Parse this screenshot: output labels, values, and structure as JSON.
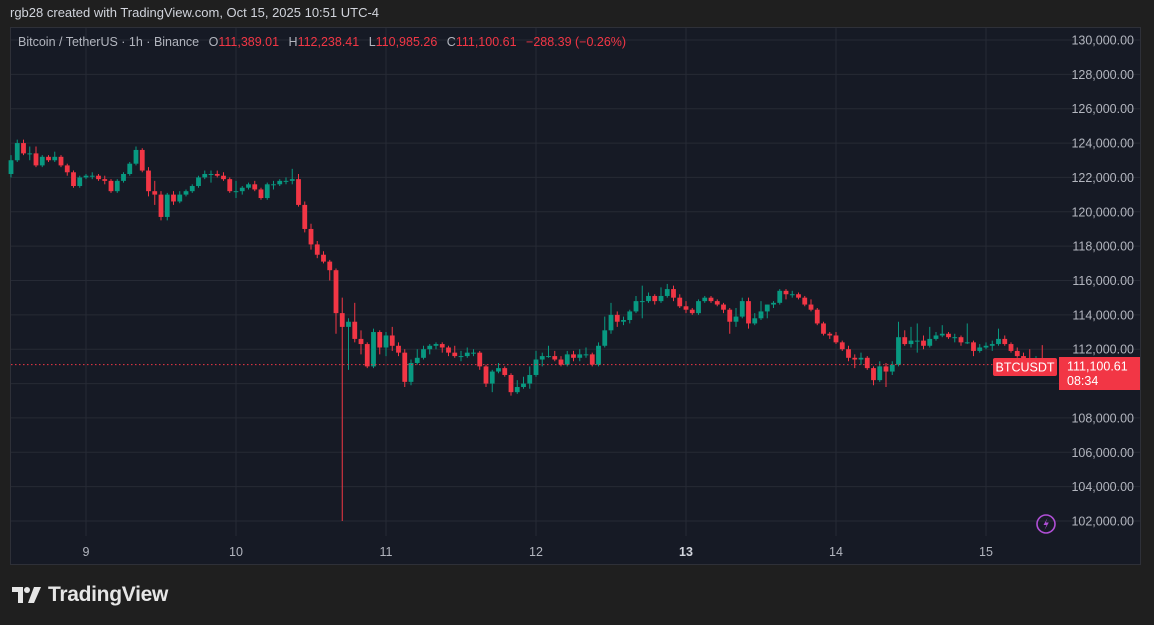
{
  "credit": "rgb28 created with TradingView.com, Oct 15, 2025 10:51 UTC-4",
  "legend": {
    "symbol": "Bitcoin / TetherUS · 1h · Binance",
    "o_label": "O",
    "o": "111,389.01",
    "h_label": "H",
    "h": "112,238.41",
    "l_label": "L",
    "l": "110,985.26",
    "c_label": "C",
    "c": "111,100.61",
    "change": "−288.39 (−0.26%)"
  },
  "price_tag": {
    "symbol": "BTCUSDT",
    "price": "111,100.61",
    "countdown": "08:34"
  },
  "brand": {
    "name": "TradingView"
  },
  "colors": {
    "up": "#089981",
    "down": "#f23645",
    "background": "#161a25",
    "grid": "#262a35",
    "alert_icon": "#b04fd6"
  },
  "icons": {
    "alert": "lightning-circle-icon",
    "logo": "tradingview-logo-icon"
  },
  "chart_data": {
    "type": "candlestick",
    "interval": "1h",
    "ylim": [
      101000,
      131000
    ],
    "y_ticks": [
      "130,000.00",
      "128,000.00",
      "126,000.00",
      "124,000.00",
      "122,000.00",
      "120,000.00",
      "118,000.00",
      "116,000.00",
      "114,000.00",
      "112,000.00",
      "108,000.00",
      "106,000.00",
      "104,000.00",
      "102,000.00"
    ],
    "y_tick_values": [
      130000,
      128000,
      126000,
      124000,
      122000,
      120000,
      118000,
      116000,
      114000,
      112000,
      108000,
      106000,
      104000,
      102000
    ],
    "x_ticks": [
      "9",
      "10",
      "11",
      "12",
      "13",
      "14",
      "15"
    ],
    "grid": true,
    "last_price": 111100.61,
    "candles_ohlc": [
      [
        122200,
        123300,
        122000,
        123000
      ],
      [
        123000,
        124200,
        122900,
        124000
      ],
      [
        124000,
        124200,
        123300,
        123400
      ],
      [
        123400,
        123800,
        123000,
        123400
      ],
      [
        123400,
        123800,
        122600,
        122700
      ],
      [
        122700,
        123300,
        122600,
        123200
      ],
      [
        123200,
        123300,
        122900,
        123000
      ],
      [
        123000,
        123500,
        122900,
        123200
      ],
      [
        123200,
        123300,
        122600,
        122700
      ],
      [
        122700,
        122800,
        122100,
        122300
      ],
      [
        122300,
        122400,
        121400,
        121500
      ],
      [
        121500,
        122100,
        121400,
        122000
      ],
      [
        122000,
        122200,
        121900,
        122100
      ],
      [
        122100,
        122300,
        121900,
        122100
      ],
      [
        122100,
        122200,
        121800,
        121900
      ],
      [
        121900,
        122100,
        121600,
        121800
      ],
      [
        121800,
        121900,
        121100,
        121200
      ],
      [
        121200,
        121900,
        121100,
        121800
      ],
      [
        121800,
        122300,
        121700,
        122200
      ],
      [
        122200,
        122900,
        122100,
        122800
      ],
      [
        122800,
        123800,
        122700,
        123600
      ],
      [
        123600,
        123700,
        122300,
        122400
      ],
      [
        122400,
        122600,
        120900,
        121200
      ],
      [
        121200,
        121800,
        120400,
        121000
      ],
      [
        121000,
        121200,
        119500,
        119700
      ],
      [
        119700,
        121100,
        119500,
        121000
      ],
      [
        121000,
        121200,
        120400,
        120600
      ],
      [
        120600,
        121200,
        120500,
        121000
      ],
      [
        121000,
        121300,
        120900,
        121200
      ],
      [
        121200,
        121600,
        121100,
        121500
      ],
      [
        121500,
        122100,
        121400,
        122000
      ],
      [
        122000,
        122400,
        121900,
        122200
      ],
      [
        122200,
        122400,
        121700,
        122200
      ],
      [
        122200,
        122400,
        122000,
        122100
      ],
      [
        122100,
        122300,
        121800,
        121900
      ],
      [
        121900,
        122000,
        121100,
        121200
      ],
      [
        121200,
        121800,
        120800,
        121200
      ],
      [
        121200,
        121500,
        121000,
        121400
      ],
      [
        121400,
        121700,
        121300,
        121600
      ],
      [
        121600,
        121800,
        121200,
        121300
      ],
      [
        121300,
        121400,
        120700,
        120800
      ],
      [
        120800,
        121700,
        120700,
        121600
      ],
      [
        121600,
        121800,
        121300,
        121600
      ],
      [
        121600,
        121900,
        121500,
        121800
      ],
      [
        121800,
        122000,
        121600,
        121800
      ],
      [
        121800,
        122500,
        121600,
        121900
      ],
      [
        121900,
        122200,
        120300,
        120400
      ],
      [
        120400,
        120600,
        118800,
        119000
      ],
      [
        119000,
        119300,
        117800,
        118100
      ],
      [
        118100,
        118300,
        117300,
        117500
      ],
      [
        117500,
        117700,
        117000,
        117100
      ],
      [
        117100,
        117200,
        116000,
        116600
      ],
      [
        116600,
        116700,
        112900,
        114100
      ],
      [
        114100,
        115000,
        102000,
        113300
      ],
      [
        113300,
        113800,
        110800,
        113600
      ],
      [
        113600,
        114700,
        112400,
        112600
      ],
      [
        112600,
        113100,
        111700,
        112300
      ],
      [
        112300,
        112400,
        110900,
        111000
      ],
      [
        111000,
        113200,
        110900,
        113000
      ],
      [
        113000,
        113100,
        111700,
        112100
      ],
      [
        112100,
        113000,
        111600,
        112800
      ],
      [
        112800,
        113300,
        111900,
        112200
      ],
      [
        112200,
        112400,
        111600,
        111800
      ],
      [
        111800,
        112000,
        109800,
        110100
      ],
      [
        110100,
        111400,
        109900,
        111200
      ],
      [
        111200,
        112000,
        111100,
        111500
      ],
      [
        111500,
        112200,
        111400,
        112000
      ],
      [
        112000,
        112300,
        111700,
        112200
      ],
      [
        112200,
        112400,
        112000,
        112300
      ],
      [
        112300,
        112400,
        111800,
        112100
      ],
      [
        112100,
        112200,
        111600,
        111800
      ],
      [
        111800,
        112200,
        111500,
        111600
      ],
      [
        111600,
        111900,
        111300,
        111600
      ],
      [
        111600,
        112100,
        111500,
        111800
      ],
      [
        111800,
        112000,
        111600,
        111800
      ],
      [
        111800,
        111900,
        110800,
        111000
      ],
      [
        111000,
        111100,
        109800,
        110000
      ],
      [
        110000,
        110800,
        109500,
        110700
      ],
      [
        110700,
        111200,
        110600,
        110900
      ],
      [
        110900,
        111000,
        110400,
        110500
      ],
      [
        110500,
        110600,
        109300,
        109500
      ],
      [
        109500,
        110200,
        109400,
        109800
      ],
      [
        109800,
        110400,
        109700,
        110000
      ],
      [
        110000,
        111000,
        109700,
        110500
      ],
      [
        110500,
        111900,
        110400,
        111400
      ],
      [
        111400,
        111800,
        111000,
        111600
      ],
      [
        111600,
        112200,
        111500,
        111600
      ],
      [
        111600,
        111900,
        111300,
        111400
      ],
      [
        111400,
        111600,
        111000,
        111100
      ],
      [
        111100,
        111900,
        111000,
        111700
      ],
      [
        111700,
        111900,
        111300,
        111500
      ],
      [
        111500,
        112000,
        111300,
        111700
      ],
      [
        111700,
        112100,
        111500,
        111700
      ],
      [
        111700,
        111800,
        111000,
        111100
      ],
      [
        111100,
        112400,
        111000,
        112200
      ],
      [
        112200,
        113900,
        112100,
        113100
      ],
      [
        113100,
        114700,
        112900,
        114000
      ],
      [
        114000,
        114200,
        113300,
        113600
      ],
      [
        113600,
        113900,
        113400,
        113700
      ],
      [
        113700,
        114300,
        113500,
        114200
      ],
      [
        114200,
        115100,
        114100,
        114800
      ],
      [
        114800,
        115700,
        113800,
        114800
      ],
      [
        114800,
        115300,
        114700,
        115100
      ],
      [
        115100,
        115200,
        114600,
        114800
      ],
      [
        114800,
        115600,
        114700,
        115100
      ],
      [
        115100,
        115800,
        115000,
        115500
      ],
      [
        115500,
        115700,
        114800,
        115000
      ],
      [
        115000,
        115200,
        114400,
        114500
      ],
      [
        114500,
        114800,
        114100,
        114300
      ],
      [
        114300,
        114400,
        114000,
        114100
      ],
      [
        114100,
        114900,
        114000,
        114800
      ],
      [
        114800,
        115100,
        114700,
        115000
      ],
      [
        115000,
        115100,
        114700,
        114800
      ],
      [
        114800,
        114900,
        114500,
        114600
      ],
      [
        114600,
        114700,
        114100,
        114300
      ],
      [
        114300,
        114400,
        112900,
        113600
      ],
      [
        113600,
        114400,
        113300,
        113900
      ],
      [
        113900,
        115000,
        113800,
        114800
      ],
      [
        114800,
        115000,
        113200,
        113500
      ],
      [
        113500,
        114100,
        113400,
        113800
      ],
      [
        113800,
        114800,
        113700,
        114200
      ],
      [
        114200,
        114600,
        113800,
        114600
      ],
      [
        114600,
        114800,
        114400,
        114700
      ],
      [
        114700,
        115500,
        114600,
        115400
      ],
      [
        115400,
        115500,
        114900,
        115200
      ],
      [
        115200,
        115400,
        115000,
        115200
      ],
      [
        115200,
        115300,
        114900,
        115000
      ],
      [
        115000,
        115100,
        114500,
        114600
      ],
      [
        114600,
        114900,
        114200,
        114300
      ],
      [
        114300,
        114400,
        113400,
        113500
      ],
      [
        113500,
        113600,
        112800,
        112900
      ],
      [
        112900,
        113000,
        112600,
        112800
      ],
      [
        112800,
        113000,
        112300,
        112400
      ],
      [
        112400,
        112500,
        111900,
        112000
      ],
      [
        112000,
        112200,
        111300,
        111500
      ],
      [
        111500,
        111700,
        110900,
        111400
      ],
      [
        111400,
        111800,
        111100,
        111500
      ],
      [
        111500,
        111600,
        110800,
        110900
      ],
      [
        110900,
        111000,
        109900,
        110200
      ],
      [
        110200,
        111300,
        110100,
        111000
      ],
      [
        111000,
        111200,
        109800,
        110700
      ],
      [
        110700,
        111300,
        110500,
        111100
      ],
      [
        111100,
        113600,
        111000,
        112700
      ],
      [
        112700,
        113100,
        112200,
        112300
      ],
      [
        112300,
        113300,
        112100,
        112500
      ],
      [
        112500,
        113500,
        111800,
        112500
      ],
      [
        112500,
        112800,
        112000,
        112200
      ],
      [
        112200,
        113300,
        112100,
        112600
      ],
      [
        112600,
        113000,
        112500,
        112800
      ],
      [
        112800,
        113400,
        112700,
        112900
      ],
      [
        112900,
        113000,
        112600,
        112700
      ],
      [
        112700,
        112900,
        112400,
        112700
      ],
      [
        112700,
        112800,
        112200,
        112400
      ],
      [
        112400,
        113500,
        112300,
        112400
      ],
      [
        112400,
        112500,
        111600,
        111900
      ],
      [
        111900,
        112300,
        111800,
        112100
      ],
      [
        112100,
        112400,
        112000,
        112200
      ],
      [
        112200,
        112500,
        111900,
        112300
      ],
      [
        112300,
        113200,
        112200,
        112600
      ],
      [
        112600,
        112800,
        112200,
        112300
      ],
      [
        112300,
        112400,
        111800,
        111900
      ],
      [
        111900,
        112100,
        111500,
        111600
      ],
      [
        111600,
        111800,
        111200,
        111300
      ],
      [
        111300,
        112000,
        111100,
        111200
      ],
      [
        111200,
        111600,
        111100,
        111389
      ],
      [
        111389.01,
        112238.41,
        110985.26,
        111100.61
      ]
    ]
  }
}
